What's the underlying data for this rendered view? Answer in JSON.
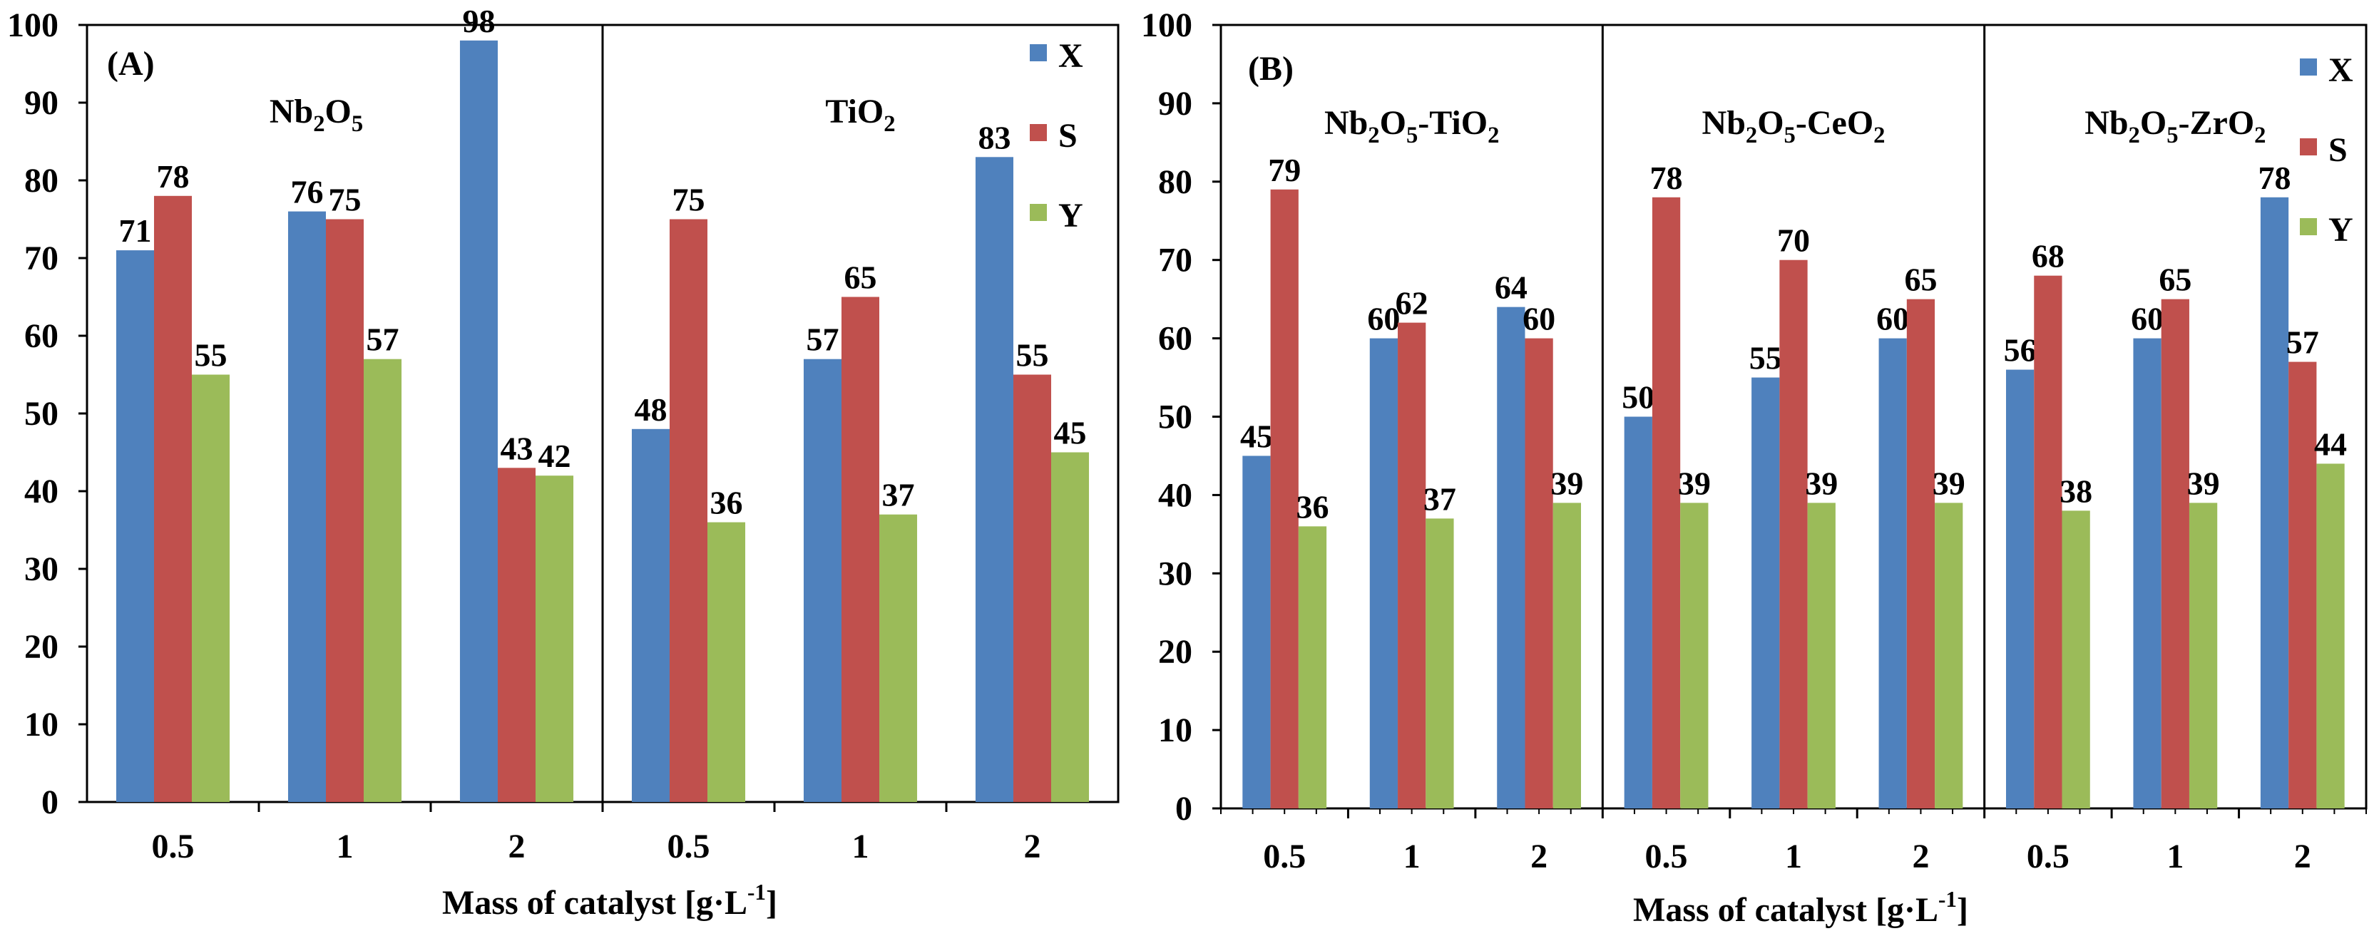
{
  "colors": {
    "X": "#4F81BD",
    "S": "#C0504D",
    "Y": "#9BBB59"
  },
  "chart_data": [
    {
      "type": "bar",
      "panel_label": "(A)",
      "xlabel": "Mass of catalyst [g·L",
      "xlabel_sup": "-1",
      "xlabel_end": "]",
      "ylabel": "",
      "ylim": [
        0,
        100
      ],
      "y_ticks": [
        "0",
        "10",
        "20",
        "30",
        "40",
        "50",
        "60",
        "70",
        "80",
        "90",
        "100"
      ],
      "legend": {
        "position": "top-right",
        "entries": [
          "X",
          "S",
          "Y"
        ]
      },
      "groups": [
        {
          "title_parts": [
            {
              "t": "Nb"
            },
            {
              "t": "2",
              "sub": true
            },
            {
              "t": "O"
            },
            {
              "t": "5",
              "sub": true
            }
          ],
          "categories": [
            "0.5",
            "1",
            "2"
          ],
          "series": [
            {
              "name": "X",
              "values": [
                71,
                76,
                98
              ]
            },
            {
              "name": "S",
              "values": [
                78,
                75,
                43
              ]
            },
            {
              "name": "Y",
              "values": [
                55,
                57,
                42
              ]
            }
          ]
        },
        {
          "title_parts": [
            {
              "t": "TiO"
            },
            {
              "t": "2",
              "sub": true
            }
          ],
          "categories": [
            "0.5",
            "1",
            "2"
          ],
          "series": [
            {
              "name": "X",
              "values": [
                48,
                57,
                83
              ]
            },
            {
              "name": "S",
              "values": [
                75,
                65,
                55
              ]
            },
            {
              "name": "Y",
              "values": [
                36,
                37,
                45
              ]
            }
          ]
        }
      ]
    },
    {
      "type": "bar",
      "panel_label": "(B)",
      "xlabel": "Mass of catalyst [g·L",
      "xlabel_sup": "-1",
      "xlabel_end": "]",
      "ylabel": "",
      "ylim": [
        0,
        100
      ],
      "y_ticks": [
        "0",
        "10",
        "20",
        "30",
        "40",
        "50",
        "60",
        "70",
        "80",
        "90",
        "100"
      ],
      "legend": {
        "position": "top-right",
        "entries": [
          "X",
          "S",
          "Y"
        ]
      },
      "groups": [
        {
          "title_parts": [
            {
              "t": "Nb"
            },
            {
              "t": "2",
              "sub": true
            },
            {
              "t": "O"
            },
            {
              "t": "5",
              "sub": true
            },
            {
              "t": "-TiO"
            },
            {
              "t": "2",
              "sub": true
            }
          ],
          "categories": [
            "0.5",
            "1",
            "2"
          ],
          "series": [
            {
              "name": "X",
              "values": [
                45,
                60,
                64
              ]
            },
            {
              "name": "S",
              "values": [
                79,
                62,
                60
              ]
            },
            {
              "name": "Y",
              "values": [
                36,
                37,
                39
              ]
            }
          ]
        },
        {
          "title_parts": [
            {
              "t": "Nb"
            },
            {
              "t": "2",
              "sub": true
            },
            {
              "t": "O"
            },
            {
              "t": "5",
              "sub": true
            },
            {
              "t": "-CeO"
            },
            {
              "t": "2",
              "sub": true
            }
          ],
          "categories": [
            "0.5",
            "1",
            "2"
          ],
          "series": [
            {
              "name": "X",
              "values": [
                50,
                55,
                60
              ]
            },
            {
              "name": "S",
              "values": [
                78,
                70,
                65
              ]
            },
            {
              "name": "Y",
              "values": [
                39,
                39,
                39
              ]
            }
          ]
        },
        {
          "title_parts": [
            {
              "t": "Nb"
            },
            {
              "t": "2",
              "sub": true
            },
            {
              "t": "O"
            },
            {
              "t": "5",
              "sub": true
            },
            {
              "t": "-ZrO"
            },
            {
              "t": "2",
              "sub": true
            }
          ],
          "categories": [
            "0.5",
            "1",
            "2"
          ],
          "series": [
            {
              "name": "X",
              "values": [
                56,
                60,
                78
              ]
            },
            {
              "name": "S",
              "values": [
                68,
                65,
                57
              ]
            },
            {
              "name": "Y",
              "values": [
                38,
                39,
                44
              ]
            }
          ]
        }
      ]
    }
  ]
}
